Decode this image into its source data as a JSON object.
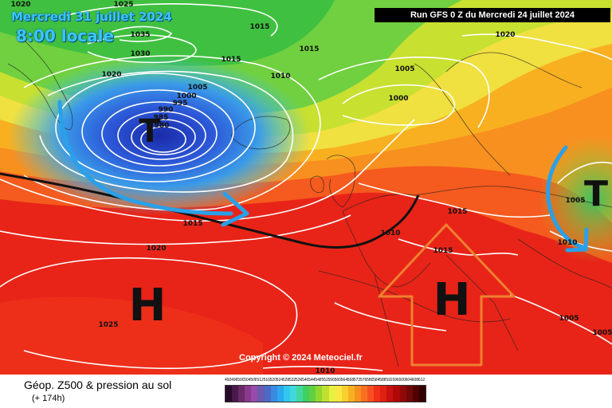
{
  "header": {
    "valid_date": "Mercredi 31 juillet 2024",
    "valid_time": "8:00 locale",
    "run_info": "Run GFS 0 Z du Mercredi 24 juillet 2024"
  },
  "footer": {
    "product_title": "Géop. Z500 & pression au sol",
    "lead_time": "(+ 174h)",
    "copyright": "Copyright © 2024 Meteociel.fr"
  },
  "pressure_systems": [
    {
      "symbol": "T"
    },
    {
      "symbol": "T"
    },
    {
      "symbol": "H"
    },
    {
      "symbol": "H"
    }
  ],
  "isobar_labels": [
    "1020",
    "1025",
    "1035",
    "1030",
    "1020",
    "1015",
    "1015",
    "1015",
    "1010",
    "1005",
    "1005",
    "1000",
    "995",
    "990",
    "985",
    "980",
    "1000",
    "1020",
    "1005",
    "1015",
    "1010",
    "1015",
    "1015",
    "1010",
    "1020",
    "1025",
    "1005",
    "1005",
    "1010"
  ],
  "color_scale": {
    "labels": [
      "492",
      "496",
      "500",
      "504",
      "508",
      "512",
      "516",
      "520",
      "524",
      "528",
      "532",
      "536",
      "540",
      "544",
      "548",
      "552",
      "556",
      "560",
      "564",
      "568",
      "572",
      "576",
      "580",
      "584",
      "588",
      "592",
      "596",
      "600",
      "604",
      "608",
      "612"
    ],
    "colors": [
      "#2a0a2a",
      "#4a1a4a",
      "#6a2a6a",
      "#8a3a8a",
      "#9a4aaa",
      "#6a5ab0",
      "#4a6ac8",
      "#3a8ae0",
      "#2aa8f0",
      "#30c8f0",
      "#40d8d8",
      "#40d8a0",
      "#40d060",
      "#60d040",
      "#90d830",
      "#c0e030",
      "#e8f040",
      "#f8e840",
      "#f8d030",
      "#f8b020",
      "#f89020",
      "#f87020",
      "#f85020",
      "#f03018",
      "#e02010",
      "#c81010",
      "#b00808",
      "#900808",
      "#700808",
      "#500000",
      "#300000"
    ]
  },
  "colors": {
    "arrow_blue": "#2aa0e8",
    "arrow_orange": "#f08030",
    "isobar": "#ffffff",
    "front": "#111111"
  }
}
